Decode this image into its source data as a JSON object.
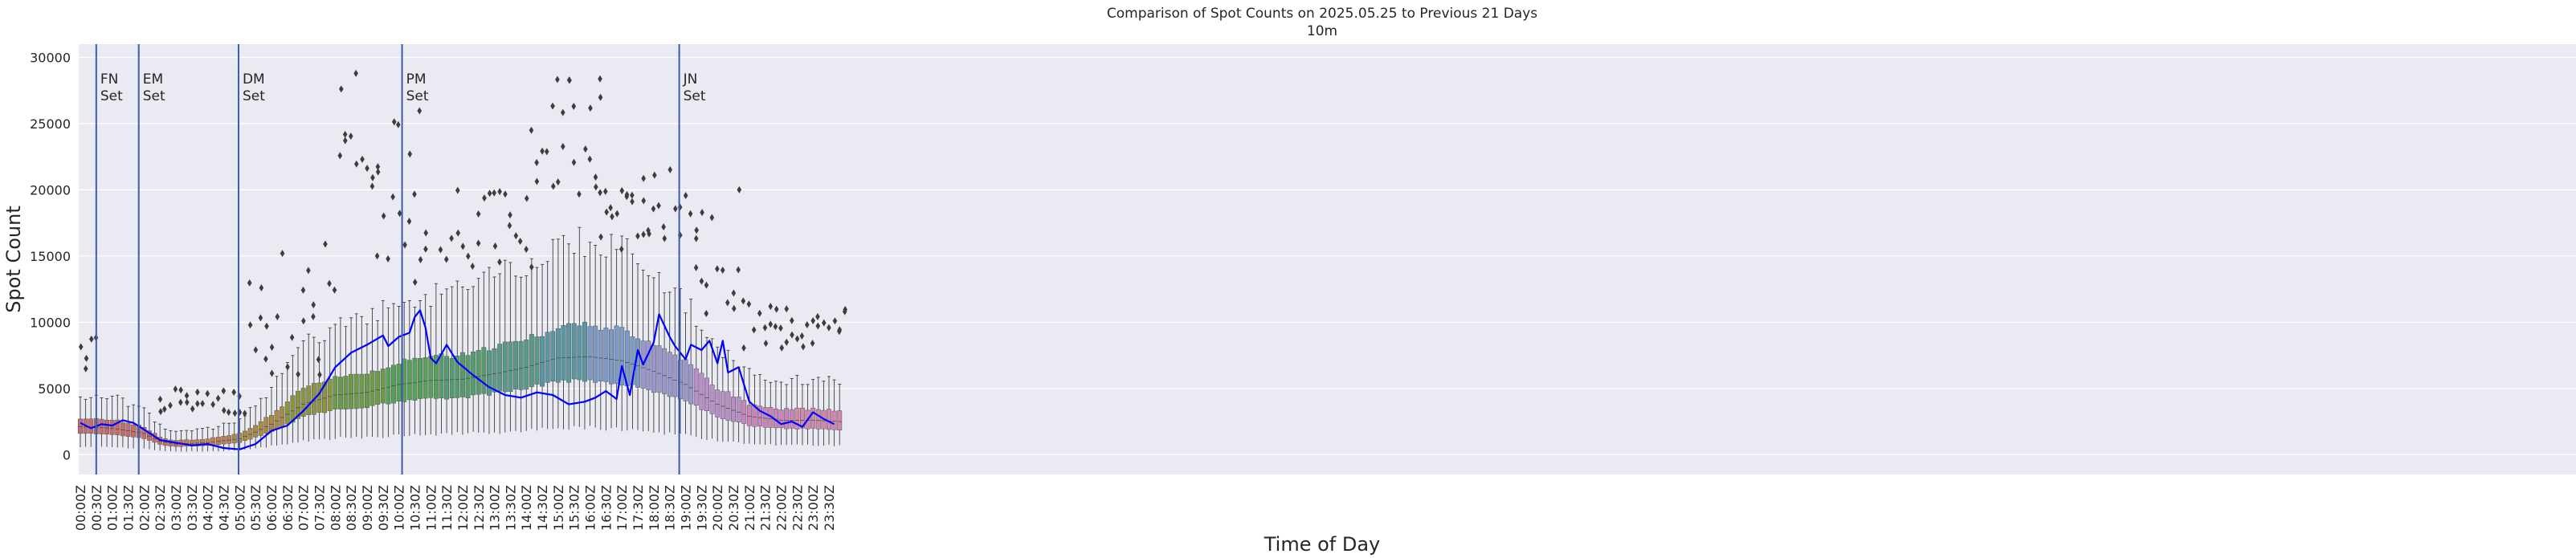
{
  "chart_data": {
    "type": "box",
    "title": "Comparison of Spot Counts on 2025.05.25 to Previous 21 Days",
    "subtitle": "10m",
    "xlabel": "Time of Day",
    "ylabel": "Spot Count",
    "ylim": [
      -1500,
      31000
    ],
    "yticks": [
      0,
      5000,
      10000,
      15000,
      20000,
      25000,
      30000
    ],
    "interval_minutes": 10,
    "xtick_labels": [
      "00:00Z",
      "00:30Z",
      "01:00Z",
      "01:30Z",
      "02:00Z",
      "02:30Z",
      "03:00Z",
      "03:30Z",
      "04:00Z",
      "04:30Z",
      "05:00Z",
      "05:30Z",
      "06:00Z",
      "06:30Z",
      "07:00Z",
      "07:30Z",
      "08:00Z",
      "08:30Z",
      "09:00Z",
      "09:30Z",
      "10:00Z",
      "10:30Z",
      "11:00Z",
      "11:30Z",
      "12:00Z",
      "12:30Z",
      "13:00Z",
      "13:30Z",
      "14:00Z",
      "14:30Z",
      "15:00Z",
      "15:30Z",
      "16:00Z",
      "16:30Z",
      "17:00Z",
      "17:30Z",
      "18:00Z",
      "18:30Z",
      "19:00Z",
      "19:30Z",
      "20:00Z",
      "20:30Z",
      "21:00Z",
      "21:30Z",
      "22:00Z",
      "22:30Z",
      "23:00Z",
      "23:30Z"
    ],
    "grid": true,
    "legend": "none",
    "colors": {
      "background": "#eaeaf2",
      "grid": "#ffffff",
      "current_day_line": "#0000ff",
      "vertical_markers": "#3b5bab",
      "whisker": "#3d3d3d",
      "outlier": "#3d3d3d"
    },
    "box_colors": [
      "#c66c6e",
      "#c56e63",
      "#c07e52",
      "#a98a47",
      "#8a9443",
      "#6b9a48",
      "#56a05a",
      "#549c6e",
      "#58998a",
      "#5a97a2",
      "#7c9ac6",
      "#9a97cf",
      "#b98fc9",
      "#cc85bc",
      "#d487ad"
    ],
    "profile": [
      {
        "t": 0,
        "med": 2100
      },
      {
        "t": 60,
        "med": 2000
      },
      {
        "t": 120,
        "med": 1600
      },
      {
        "t": 150,
        "med": 1000
      },
      {
        "t": 180,
        "med": 800
      },
      {
        "t": 240,
        "med": 900
      },
      {
        "t": 300,
        "med": 1200
      },
      {
        "t": 330,
        "med": 1700
      },
      {
        "t": 360,
        "med": 2300
      },
      {
        "t": 420,
        "med": 3800
      },
      {
        "t": 480,
        "med": 4500
      },
      {
        "t": 540,
        "med": 4700
      },
      {
        "t": 600,
        "med": 5300
      },
      {
        "t": 660,
        "med": 5600
      },
      {
        "t": 720,
        "med": 5700
      },
      {
        "t": 780,
        "med": 6100
      },
      {
        "t": 840,
        "med": 6600
      },
      {
        "t": 900,
        "med": 7300
      },
      {
        "t": 960,
        "med": 7400
      },
      {
        "t": 1020,
        "med": 7100
      },
      {
        "t": 1080,
        "med": 6300
      },
      {
        "t": 1140,
        "med": 5300
      },
      {
        "t": 1200,
        "med": 3800
      },
      {
        "t": 1260,
        "med": 2900
      },
      {
        "t": 1320,
        "med": 2600
      },
      {
        "t": 1380,
        "med": 2600
      },
      {
        "t": 1430,
        "med": 2500
      }
    ],
    "current_day": [
      {
        "t": 0,
        "v": 2400
      },
      {
        "t": 20,
        "v": 2000
      },
      {
        "t": 40,
        "v": 2300
      },
      {
        "t": 60,
        "v": 2200
      },
      {
        "t": 80,
        "v": 2600
      },
      {
        "t": 100,
        "v": 2400
      },
      {
        "t": 120,
        "v": 1900
      },
      {
        "t": 150,
        "v": 1100
      },
      {
        "t": 180,
        "v": 900
      },
      {
        "t": 210,
        "v": 700
      },
      {
        "t": 240,
        "v": 800
      },
      {
        "t": 270,
        "v": 500
      },
      {
        "t": 300,
        "v": 400
      },
      {
        "t": 330,
        "v": 800
      },
      {
        "t": 360,
        "v": 1800
      },
      {
        "t": 390,
        "v": 2200
      },
      {
        "t": 420,
        "v": 3300
      },
      {
        "t": 450,
        "v": 4600
      },
      {
        "t": 480,
        "v": 6600
      },
      {
        "t": 510,
        "v": 7700
      },
      {
        "t": 540,
        "v": 8300
      },
      {
        "t": 570,
        "v": 9000
      },
      {
        "t": 580,
        "v": 8200
      },
      {
        "t": 600,
        "v": 8900
      },
      {
        "t": 620,
        "v": 9200
      },
      {
        "t": 630,
        "v": 10400
      },
      {
        "t": 640,
        "v": 10900
      },
      {
        "t": 650,
        "v": 9600
      },
      {
        "t": 660,
        "v": 7300
      },
      {
        "t": 670,
        "v": 6900
      },
      {
        "t": 690,
        "v": 8300
      },
      {
        "t": 710,
        "v": 7000
      },
      {
        "t": 740,
        "v": 6000
      },
      {
        "t": 770,
        "v": 5100
      },
      {
        "t": 800,
        "v": 4500
      },
      {
        "t": 830,
        "v": 4300
      },
      {
        "t": 860,
        "v": 4700
      },
      {
        "t": 890,
        "v": 4500
      },
      {
        "t": 920,
        "v": 3800
      },
      {
        "t": 950,
        "v": 4000
      },
      {
        "t": 970,
        "v": 4300
      },
      {
        "t": 990,
        "v": 4800
      },
      {
        "t": 1010,
        "v": 4200
      },
      {
        "t": 1020,
        "v": 6700
      },
      {
        "t": 1035,
        "v": 4500
      },
      {
        "t": 1050,
        "v": 7900
      },
      {
        "t": 1060,
        "v": 6800
      },
      {
        "t": 1080,
        "v": 8500
      },
      {
        "t": 1090,
        "v": 10600
      },
      {
        "t": 1110,
        "v": 8900
      },
      {
        "t": 1120,
        "v": 8200
      },
      {
        "t": 1140,
        "v": 7200
      },
      {
        "t": 1150,
        "v": 8300
      },
      {
        "t": 1170,
        "v": 7900
      },
      {
        "t": 1185,
        "v": 8600
      },
      {
        "t": 1200,
        "v": 6900
      },
      {
        "t": 1210,
        "v": 8600
      },
      {
        "t": 1220,
        "v": 6200
      },
      {
        "t": 1240,
        "v": 6600
      },
      {
        "t": 1260,
        "v": 4000
      },
      {
        "t": 1280,
        "v": 3300
      },
      {
        "t": 1300,
        "v": 2900
      },
      {
        "t": 1320,
        "v": 2300
      },
      {
        "t": 1340,
        "v": 2500
      },
      {
        "t": 1360,
        "v": 2100
      },
      {
        "t": 1380,
        "v": 3200
      },
      {
        "t": 1400,
        "v": 2700
      },
      {
        "t": 1420,
        "v": 2300
      }
    ],
    "outlier_clusters": [
      {
        "t0": 0,
        "t1": 30,
        "lo": 6000,
        "hi": 10500
      },
      {
        "t0": 150,
        "t1": 310,
        "lo": 3000,
        "hi": 5000
      },
      {
        "t0": 320,
        "t1": 480,
        "lo": 6000,
        "hi": 16000
      },
      {
        "t0": 490,
        "t1": 560,
        "lo": 20000,
        "hi": 30000
      },
      {
        "t0": 560,
        "t1": 650,
        "lo": 12000,
        "hi": 26000
      },
      {
        "t0": 680,
        "t1": 850,
        "lo": 14000,
        "hi": 20000
      },
      {
        "t0": 850,
        "t1": 980,
        "lo": 19000,
        "hi": 29500
      },
      {
        "t0": 980,
        "t1": 1060,
        "lo": 15000,
        "hi": 20000
      },
      {
        "t0": 1060,
        "t1": 1160,
        "lo": 16000,
        "hi": 21800
      },
      {
        "t0": 1160,
        "t1": 1250,
        "lo": 10000,
        "hi": 20500
      },
      {
        "t0": 1250,
        "t1": 1440,
        "lo": 8000,
        "hi": 11500
      }
    ],
    "vertical_markers": [
      {
        "t": 30,
        "label_line1": "FN",
        "label_line2": "Set"
      },
      {
        "t": 110,
        "label_line1": "EM",
        "label_line2": "Set"
      },
      {
        "t": 298,
        "label_line1": "DM",
        "label_line2": "Set"
      },
      {
        "t": 606,
        "label_line1": "PM",
        "label_line2": "Set"
      },
      {
        "t": 1128,
        "label_line1": "JN",
        "label_line2": "Set"
      }
    ]
  }
}
